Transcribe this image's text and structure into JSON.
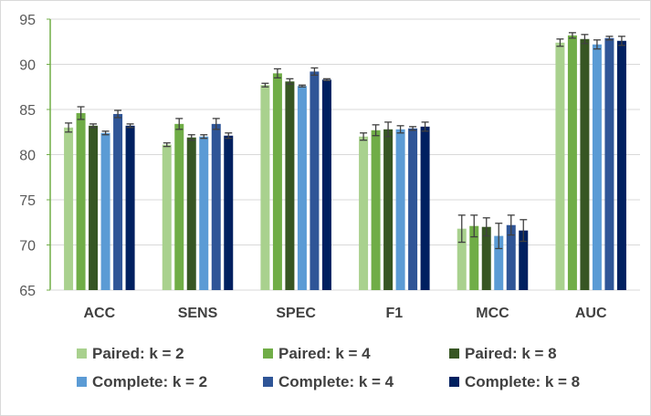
{
  "chart_data": {
    "type": "bar",
    "categories": [
      "ACC",
      "SENS",
      "SPEC",
      "F1",
      "MCC",
      "AUC"
    ],
    "ylim": [
      65,
      95
    ],
    "yticks": [
      65,
      70,
      75,
      80,
      85,
      90,
      95
    ],
    "grid": true,
    "legend_position": "bottom",
    "series": [
      {
        "name": "Paired: k = 2",
        "color": "#a9d18e",
        "values": [
          83.0,
          81.1,
          87.7,
          82.0,
          71.8,
          92.4
        ],
        "errors": [
          0.5,
          0.2,
          0.2,
          0.4,
          1.5,
          0.4
        ]
      },
      {
        "name": "Paired: k = 4",
        "color": "#70ad47",
        "values": [
          84.6,
          83.4,
          89.0,
          82.7,
          72.1,
          93.2
        ],
        "errors": [
          0.7,
          0.6,
          0.5,
          0.6,
          1.2,
          0.3
        ]
      },
      {
        "name": "Paired: k = 8",
        "color": "#375623",
        "values": [
          83.2,
          81.9,
          88.1,
          82.8,
          72.0,
          92.8
        ],
        "errors": [
          0.2,
          0.3,
          0.3,
          0.8,
          1.0,
          0.5
        ]
      },
      {
        "name": "Complete: k = 2",
        "color": "#5b9bd5",
        "values": [
          82.4,
          82.0,
          87.6,
          82.8,
          71.0,
          92.2
        ],
        "errors": [
          0.2,
          0.2,
          0.1,
          0.4,
          1.4,
          0.5
        ]
      },
      {
        "name": "Complete: k = 4",
        "color": "#2f5597",
        "values": [
          84.5,
          83.4,
          89.2,
          82.9,
          72.2,
          92.9
        ],
        "errors": [
          0.4,
          0.6,
          0.4,
          0.2,
          1.1,
          0.2
        ]
      },
      {
        "name": "Complete: k = 8",
        "color": "#002060",
        "values": [
          83.2,
          82.1,
          88.3,
          83.1,
          71.6,
          92.6
        ],
        "errors": [
          0.2,
          0.3,
          0.1,
          0.5,
          1.2,
          0.5
        ]
      }
    ]
  }
}
